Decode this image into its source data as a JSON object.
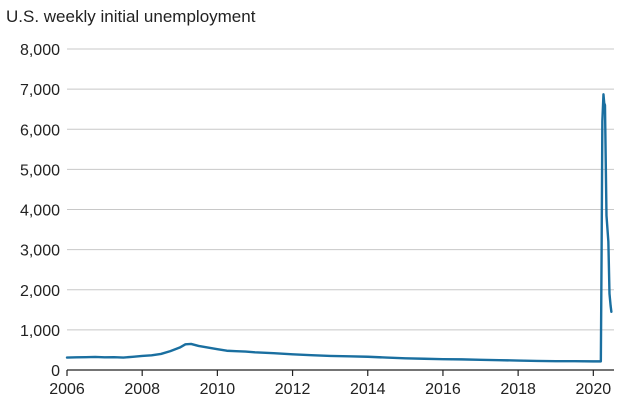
{
  "chart_data": {
    "type": "line",
    "title": "U.S. weekly initial unemployment",
    "xlabel": "",
    "ylabel": "",
    "xlim": [
      2006,
      2020.55
    ],
    "ylim": [
      0,
      8000
    ],
    "x_ticks": [
      2006,
      2008,
      2010,
      2012,
      2014,
      2016,
      2018,
      2020
    ],
    "x_tick_labels": [
      "2006",
      "2008",
      "2010",
      "2012",
      "2014",
      "2016",
      "2018",
      "2020"
    ],
    "y_ticks": [
      0,
      1000,
      2000,
      3000,
      4000,
      5000,
      6000,
      7000,
      8000
    ],
    "y_tick_labels": [
      "0",
      "1,000",
      "2,000",
      "3,000",
      "4,000",
      "5,000",
      "6,000",
      "7,000",
      "8,000"
    ],
    "grid": true,
    "legend": "none",
    "series": [
      {
        "color": "#1a6fa0",
        "x": [
          2006.0,
          2006.25,
          2006.5,
          2006.75,
          2007.0,
          2007.25,
          2007.5,
          2007.75,
          2008.0,
          2008.25,
          2008.5,
          2008.75,
          2009.0,
          2009.15,
          2009.3,
          2009.5,
          2009.75,
          2010.0,
          2010.25,
          2010.5,
          2010.75,
          2011.0,
          2011.5,
          2012.0,
          2012.5,
          2013.0,
          2013.5,
          2014.0,
          2014.5,
          2015.0,
          2015.5,
          2016.0,
          2016.5,
          2017.0,
          2017.5,
          2018.0,
          2018.5,
          2019.0,
          2019.5,
          2020.0,
          2020.2,
          2020.22,
          2020.24,
          2020.27,
          2020.29,
          2020.31,
          2020.35,
          2020.4,
          2020.43,
          2020.46,
          2020.48
        ],
        "values": [
          310,
          315,
          320,
          325,
          315,
          320,
          310,
          330,
          350,
          365,
          400,
          470,
          560,
          640,
          650,
          600,
          560,
          520,
          480,
          470,
          460,
          440,
          420,
          390,
          370,
          350,
          340,
          330,
          310,
          290,
          280,
          270,
          265,
          255,
          245,
          235,
          225,
          220,
          220,
          215,
          215,
          2900,
          6200,
          6870,
          6650,
          6600,
          3850,
          3200,
          1900,
          1600,
          1450
        ]
      }
    ]
  }
}
